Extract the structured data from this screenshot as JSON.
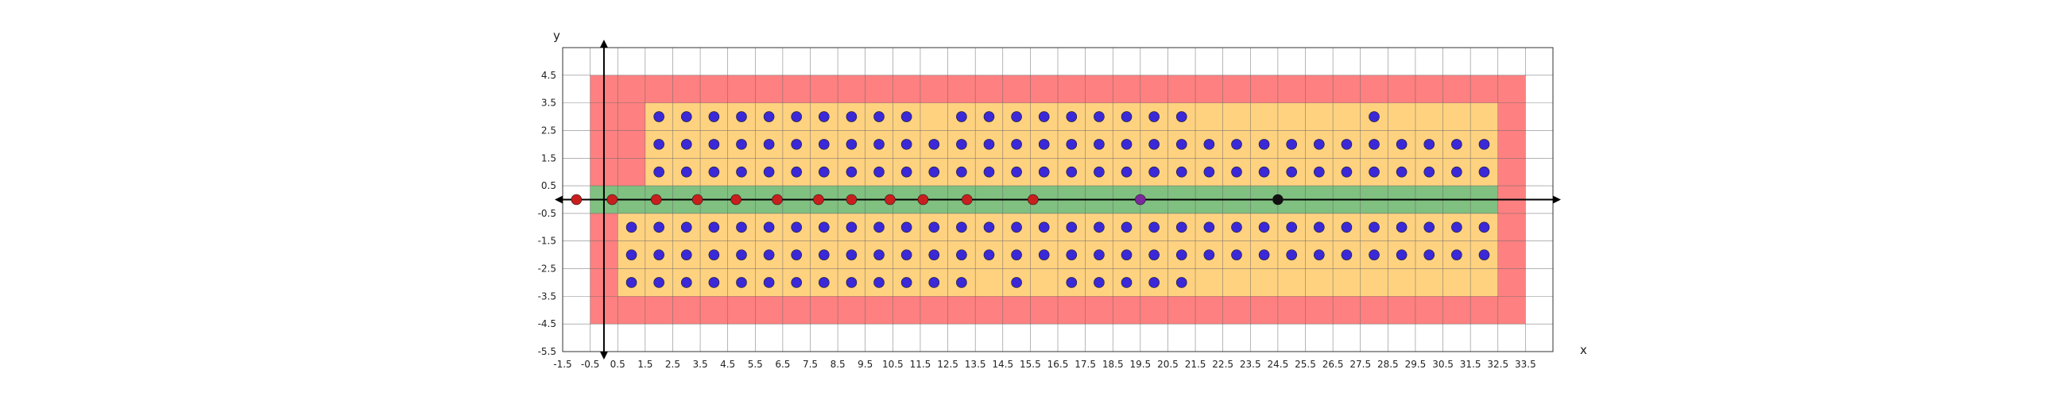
{
  "chart_data": {
    "type": "scatter",
    "title": "",
    "xlabel": "x",
    "ylabel": "y",
    "xlim": [
      -1.5,
      34.5
    ],
    "ylim": [
      -5.5,
      5.5
    ],
    "grid": true,
    "x_ticks": [
      "-1.5",
      "-0.5",
      "0.5",
      "1.5",
      "2.5",
      "3.5",
      "4.5",
      "5.5",
      "6.5",
      "7.5",
      "8.5",
      "9.5",
      "10.5",
      "11.5",
      "12.5",
      "13.5",
      "14.5",
      "15.5",
      "16.5",
      "17.5",
      "18.5",
      "19.5",
      "20.5",
      "21.5",
      "22.5",
      "23.5",
      "24.5",
      "25.5",
      "26.5",
      "27.5",
      "28.5",
      "29.5",
      "30.5",
      "31.5",
      "32.5",
      "33.5"
    ],
    "y_ticks": [
      "4.5",
      "3.5",
      "2.5",
      "1.5",
      "0.5",
      "-0.5",
      "-1.5",
      "-2.5",
      "-3.5",
      "-4.5",
      "-5.5"
    ],
    "regions": [
      {
        "color": "#ff8080",
        "x": [
          -0.5,
          33.5
        ],
        "y": [
          -4.5,
          4.5
        ]
      },
      {
        "color": "#ffd280",
        "x": [
          1.5,
          32.5
        ],
        "y": [
          0.5,
          3.5
        ]
      },
      {
        "color": "#ffd280",
        "x": [
          0.5,
          32.5
        ],
        "y": [
          -3.5,
          -0.5
        ]
      },
      {
        "color": "#80c080",
        "x": [
          -0.5,
          32.5
        ],
        "y": [
          -0.5,
          0.5
        ]
      }
    ],
    "series": [
      {
        "color": "#3b28d6",
        "points": [
          [
            2,
            3
          ],
          [
            3,
            3
          ],
          [
            4,
            3
          ],
          [
            5,
            3
          ],
          [
            6,
            3
          ],
          [
            7,
            3
          ],
          [
            8,
            3
          ],
          [
            9,
            3
          ],
          [
            10,
            3
          ],
          [
            11,
            3
          ],
          [
            13,
            3
          ],
          [
            14,
            3
          ],
          [
            15,
            3
          ],
          [
            16,
            3
          ],
          [
            17,
            3
          ],
          [
            18,
            3
          ],
          [
            19,
            3
          ],
          [
            20,
            3
          ],
          [
            21,
            3
          ],
          [
            28,
            3
          ],
          [
            2,
            2
          ],
          [
            3,
            2
          ],
          [
            4,
            2
          ],
          [
            5,
            2
          ],
          [
            6,
            2
          ],
          [
            7,
            2
          ],
          [
            8,
            2
          ],
          [
            9,
            2
          ],
          [
            10,
            2
          ],
          [
            11,
            2
          ],
          [
            12,
            2
          ],
          [
            13,
            2
          ],
          [
            14,
            2
          ],
          [
            15,
            2
          ],
          [
            16,
            2
          ],
          [
            17,
            2
          ],
          [
            18,
            2
          ],
          [
            19,
            2
          ],
          [
            20,
            2
          ],
          [
            21,
            2
          ],
          [
            22,
            2
          ],
          [
            23,
            2
          ],
          [
            24,
            2
          ],
          [
            25,
            2
          ],
          [
            26,
            2
          ],
          [
            27,
            2
          ],
          [
            28,
            2
          ],
          [
            29,
            2
          ],
          [
            30,
            2
          ],
          [
            31,
            2
          ],
          [
            32,
            2
          ],
          [
            2,
            1
          ],
          [
            3,
            1
          ],
          [
            4,
            1
          ],
          [
            5,
            1
          ],
          [
            6,
            1
          ],
          [
            7,
            1
          ],
          [
            8,
            1
          ],
          [
            9,
            1
          ],
          [
            10,
            1
          ],
          [
            11,
            1
          ],
          [
            12,
            1
          ],
          [
            13,
            1
          ],
          [
            14,
            1
          ],
          [
            15,
            1
          ],
          [
            16,
            1
          ],
          [
            17,
            1
          ],
          [
            18,
            1
          ],
          [
            19,
            1
          ],
          [
            20,
            1
          ],
          [
            21,
            1
          ],
          [
            22,
            1
          ],
          [
            23,
            1
          ],
          [
            24,
            1
          ],
          [
            25,
            1
          ],
          [
            26,
            1
          ],
          [
            27,
            1
          ],
          [
            28,
            1
          ],
          [
            29,
            1
          ],
          [
            30,
            1
          ],
          [
            31,
            1
          ],
          [
            32,
            1
          ],
          [
            1,
            -1
          ],
          [
            2,
            -1
          ],
          [
            3,
            -1
          ],
          [
            4,
            -1
          ],
          [
            5,
            -1
          ],
          [
            6,
            -1
          ],
          [
            7,
            -1
          ],
          [
            8,
            -1
          ],
          [
            9,
            -1
          ],
          [
            10,
            -1
          ],
          [
            11,
            -1
          ],
          [
            12,
            -1
          ],
          [
            13,
            -1
          ],
          [
            14,
            -1
          ],
          [
            15,
            -1
          ],
          [
            16,
            -1
          ],
          [
            17,
            -1
          ],
          [
            18,
            -1
          ],
          [
            19,
            -1
          ],
          [
            20,
            -1
          ],
          [
            21,
            -1
          ],
          [
            22,
            -1
          ],
          [
            23,
            -1
          ],
          [
            24,
            -1
          ],
          [
            25,
            -1
          ],
          [
            26,
            -1
          ],
          [
            27,
            -1
          ],
          [
            28,
            -1
          ],
          [
            29,
            -1
          ],
          [
            30,
            -1
          ],
          [
            31,
            -1
          ],
          [
            32,
            -1
          ],
          [
            1,
            -2
          ],
          [
            2,
            -2
          ],
          [
            3,
            -2
          ],
          [
            4,
            -2
          ],
          [
            5,
            -2
          ],
          [
            6,
            -2
          ],
          [
            7,
            -2
          ],
          [
            8,
            -2
          ],
          [
            9,
            -2
          ],
          [
            10,
            -2
          ],
          [
            11,
            -2
          ],
          [
            12,
            -2
          ],
          [
            13,
            -2
          ],
          [
            14,
            -2
          ],
          [
            15,
            -2
          ],
          [
            16,
            -2
          ],
          [
            17,
            -2
          ],
          [
            18,
            -2
          ],
          [
            19,
            -2
          ],
          [
            20,
            -2
          ],
          [
            21,
            -2
          ],
          [
            22,
            -2
          ],
          [
            23,
            -2
          ],
          [
            24,
            -2
          ],
          [
            25,
            -2
          ],
          [
            26,
            -2
          ],
          [
            27,
            -2
          ],
          [
            28,
            -2
          ],
          [
            29,
            -2
          ],
          [
            30,
            -2
          ],
          [
            31,
            -2
          ],
          [
            32,
            -2
          ],
          [
            1,
            -3
          ],
          [
            2,
            -3
          ],
          [
            3,
            -3
          ],
          [
            4,
            -3
          ],
          [
            5,
            -3
          ],
          [
            6,
            -3
          ],
          [
            7,
            -3
          ],
          [
            8,
            -3
          ],
          [
            9,
            -3
          ],
          [
            10,
            -3
          ],
          [
            11,
            -3
          ],
          [
            12,
            -3
          ],
          [
            13,
            -3
          ],
          [
            15,
            -3
          ],
          [
            17,
            -3
          ],
          [
            18,
            -3
          ],
          [
            19,
            -3
          ],
          [
            20,
            -3
          ],
          [
            21,
            -3
          ]
        ]
      },
      {
        "color": "#c81e1e",
        "points": [
          [
            -1,
            0
          ],
          [
            0.3,
            0
          ],
          [
            1.9,
            0
          ],
          [
            3.4,
            0
          ],
          [
            4.8,
            0
          ],
          [
            6.3,
            0
          ],
          [
            7.8,
            0
          ],
          [
            9,
            0
          ],
          [
            10.4,
            0
          ],
          [
            11.6,
            0
          ],
          [
            13.2,
            0
          ],
          [
            15.6,
            0
          ]
        ]
      },
      {
        "color": "#7a2a9a",
        "points": [
          [
            19.5,
            0
          ]
        ]
      },
      {
        "color": "#111111",
        "points": [
          [
            24.5,
            0
          ]
        ]
      }
    ]
  }
}
